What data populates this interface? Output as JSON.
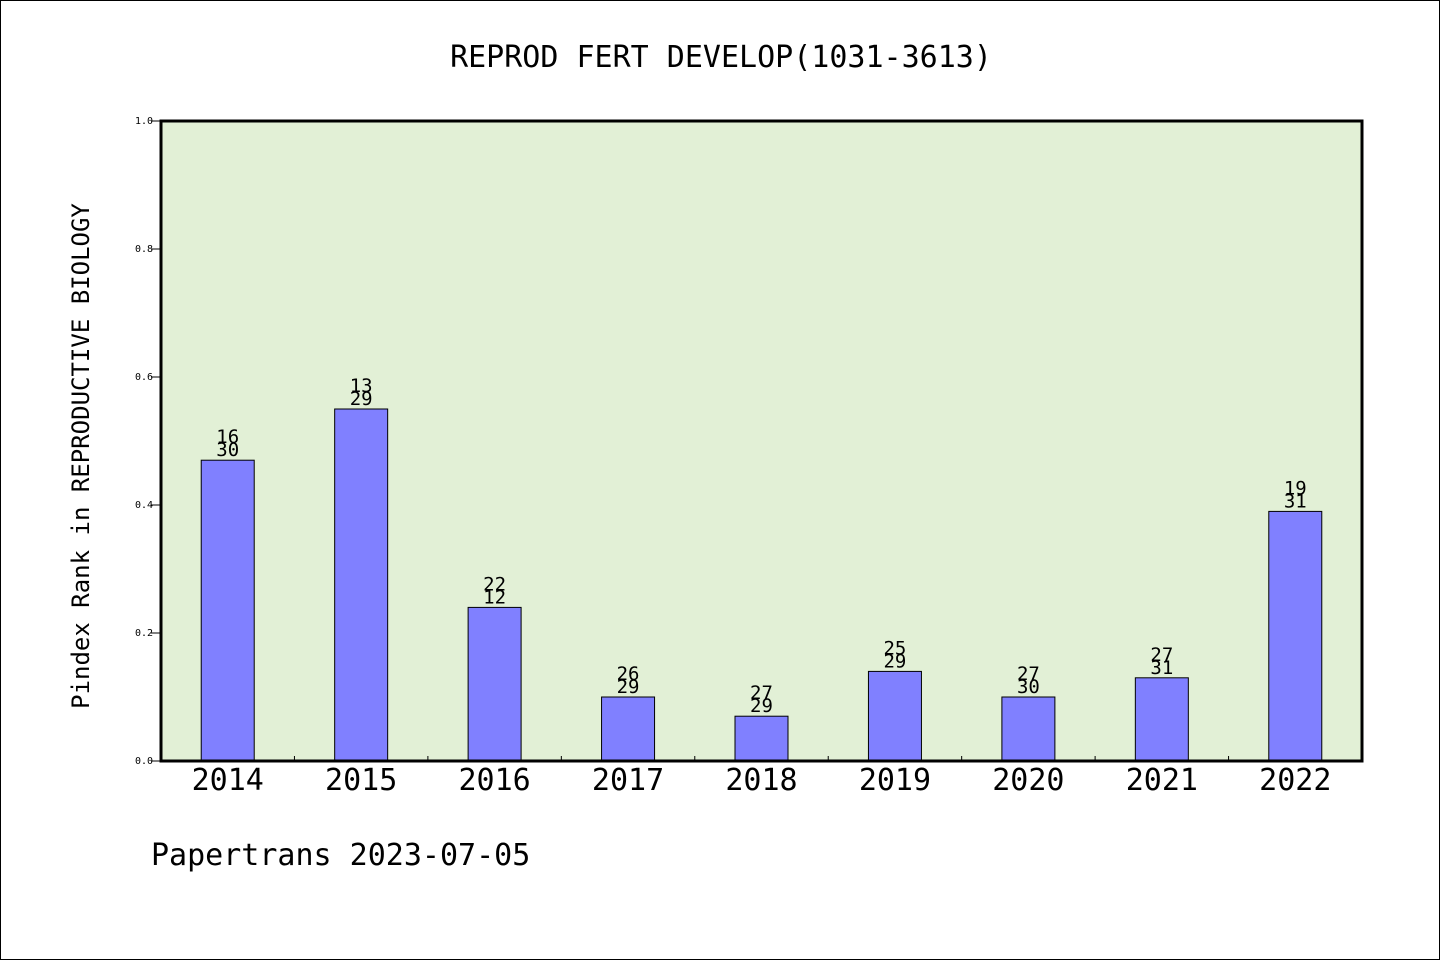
{
  "chart_data": {
    "type": "bar",
    "title": "REPROD FERT DEVELOP(1031-3613)",
    "xlabel": "",
    "ylabel": "Pindex Rank in REPRODUCTIVE BIOLOGY",
    "ylim": [
      0,
      1.0
    ],
    "yticks": [
      "0.0",
      "0.2",
      "0.4",
      "0.6",
      "0.8",
      "1.0"
    ],
    "categories": [
      "2014",
      "2015",
      "2016",
      "2017",
      "2018",
      "2019",
      "2020",
      "2021",
      "2022"
    ],
    "values": [
      0.47,
      0.55,
      0.24,
      0.1,
      0.07,
      0.14,
      0.1,
      0.13,
      0.39
    ],
    "labels_top": [
      "16",
      "13",
      "22",
      "26",
      "27",
      "25",
      "27",
      "27",
      "19"
    ],
    "labels_bottom": [
      "30",
      "29",
      "12",
      "29",
      "29",
      "29",
      "30",
      "31",
      "31"
    ],
    "grid": false,
    "legend": "none",
    "colors": {
      "plot_background": "#e2f0d6",
      "bar_fill": "#8080ff",
      "bar_stroke": "#000000"
    }
  },
  "footer": {
    "text": "Papertrans 2023-07-05"
  }
}
